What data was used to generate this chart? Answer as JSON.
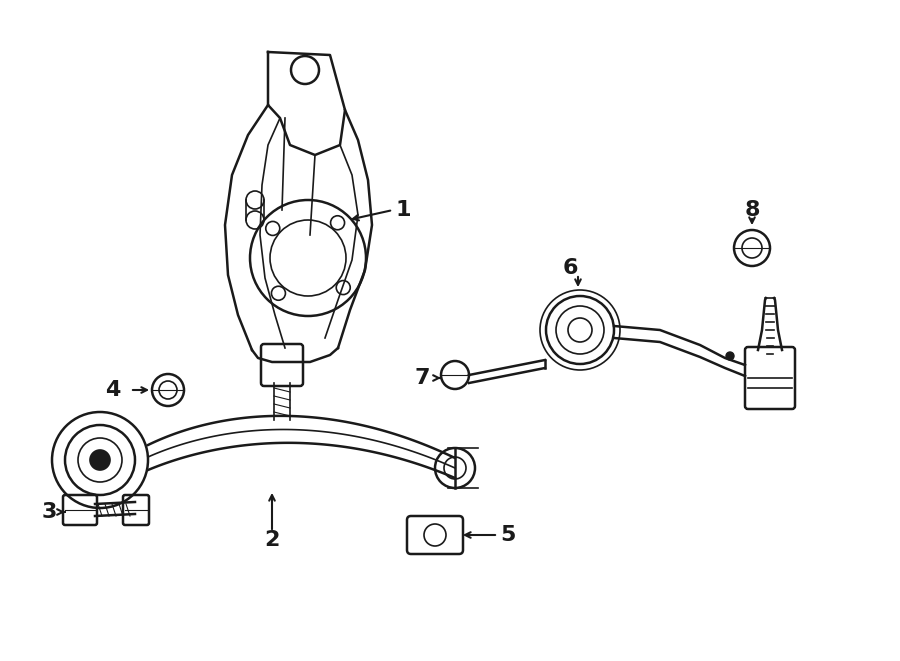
{
  "background_color": "#ffffff",
  "line_color": "#1a1a1a",
  "figsize": [
    9.0,
    6.61
  ],
  "dpi": 100,
  "xlim": [
    0,
    900
  ],
  "ylim": [
    0,
    661
  ]
}
